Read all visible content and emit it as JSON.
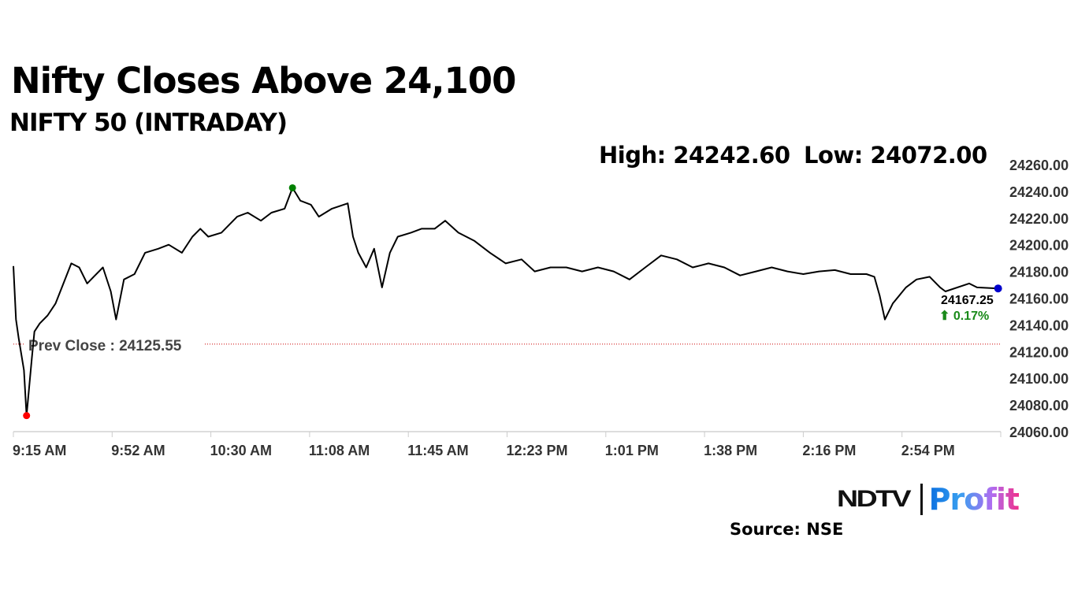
{
  "header": {
    "title": "Nifty Closes Above 24,100",
    "subtitle": "NIFTY 50 (INTRADAY)",
    "high_label": "High: 24242.60",
    "low_label": "Low: 24072.00"
  },
  "footer": {
    "brand_left": "NDTV",
    "brand_right": "Profit",
    "source": "Source: NSE"
  },
  "chart_data": {
    "type": "line",
    "title": "NIFTY 50 (INTRADAY)",
    "high": 24242.6,
    "low": 24072.0,
    "prev_close": 24125.55,
    "prev_close_label": "Prev Close : 24125.55",
    "last_value_label": "24167.25",
    "change_label": "⬆ 0.17%",
    "colors": {
      "line": "#000000",
      "high_dot": "#008000",
      "low_dot": "#ff0000",
      "last_dot": "#0000cc",
      "prev_close": "#cc0000",
      "change": "#1a8a1a"
    },
    "x_range": [
      "09:15",
      "15:30"
    ],
    "x_tick_labels": [
      "9:15 AM",
      "9:52 AM",
      "10:30 AM",
      "11:08 AM",
      "11:45 AM",
      "12:23 PM",
      "1:01 PM",
      "1:38 PM",
      "2:16 PM",
      "2:54 PM"
    ],
    "ylim": [
      24060,
      24260
    ],
    "y_tick_labels": [
      "24060.00",
      "24080.00",
      "24100.00",
      "24120.00",
      "24140.00",
      "24160.00",
      "24180.00",
      "24200.00",
      "24220.00",
      "24240.00",
      "24260.00"
    ],
    "grid": false,
    "series": [
      {
        "points": [
          [
            "09:15",
            24184
          ],
          [
            "09:16",
            24144
          ],
          [
            "09:17",
            24130
          ],
          [
            "09:19",
            24106
          ],
          [
            "09:20",
            24072
          ],
          [
            "09:22",
            24115
          ],
          [
            "09:23",
            24135
          ],
          [
            "09:25",
            24141
          ],
          [
            "09:28",
            24147
          ],
          [
            "09:31",
            24156
          ],
          [
            "09:34",
            24171
          ],
          [
            "09:37",
            24186
          ],
          [
            "09:40",
            24183
          ],
          [
            "09:43",
            24171
          ],
          [
            "09:46",
            24177
          ],
          [
            "09:49",
            24183
          ],
          [
            "09:52",
            24165
          ],
          [
            "09:54",
            24144
          ],
          [
            "09:57",
            24174
          ],
          [
            "10:01",
            24178
          ],
          [
            "10:05",
            24194
          ],
          [
            "10:10",
            24197
          ],
          [
            "10:14",
            24200
          ],
          [
            "10:19",
            24194
          ],
          [
            "10:23",
            24206
          ],
          [
            "10:26",
            24212
          ],
          [
            "10:29",
            24206
          ],
          [
            "10:34",
            24209
          ],
          [
            "10:40",
            24221
          ],
          [
            "10:44",
            24224
          ],
          [
            "10:49",
            24218
          ],
          [
            "10:53",
            24224
          ],
          [
            "10:58",
            24227
          ],
          [
            "11:01",
            24242.6
          ],
          [
            "11:04",
            24233
          ],
          [
            "11:08",
            24230
          ],
          [
            "11:11",
            24221
          ],
          [
            "11:16",
            24227
          ],
          [
            "11:22",
            24231
          ],
          [
            "11:24",
            24206
          ],
          [
            "11:26",
            24194
          ],
          [
            "11:29",
            24183
          ],
          [
            "11:32",
            24197
          ],
          [
            "11:35",
            24168
          ],
          [
            "11:38",
            24194
          ],
          [
            "11:41",
            24206
          ],
          [
            "11:46",
            24209
          ],
          [
            "11:50",
            24212
          ],
          [
            "11:55",
            24212
          ],
          [
            "11:59",
            24218
          ],
          [
            "12:04",
            24209
          ],
          [
            "12:10",
            24203
          ],
          [
            "12:16",
            24194
          ],
          [
            "12:22",
            24186
          ],
          [
            "12:28",
            24189
          ],
          [
            "12:33",
            24180
          ],
          [
            "12:39",
            24183
          ],
          [
            "12:45",
            24183
          ],
          [
            "12:51",
            24180
          ],
          [
            "12:57",
            24183
          ],
          [
            "13:03",
            24180
          ],
          [
            "13:09",
            24174
          ],
          [
            "13:15",
            24183
          ],
          [
            "13:21",
            24192
          ],
          [
            "13:27",
            24189
          ],
          [
            "13:33",
            24183
          ],
          [
            "13:39",
            24186
          ],
          [
            "13:45",
            24183
          ],
          [
            "13:51",
            24177
          ],
          [
            "13:57",
            24180
          ],
          [
            "14:03",
            24183
          ],
          [
            "14:09",
            24180
          ],
          [
            "14:15",
            24178
          ],
          [
            "14:21",
            24180
          ],
          [
            "14:27",
            24181
          ],
          [
            "14:33",
            24178
          ],
          [
            "14:39",
            24178
          ],
          [
            "14:42",
            24176
          ],
          [
            "14:44",
            24162
          ],
          [
            "14:46",
            24144
          ],
          [
            "14:49",
            24156
          ],
          [
            "14:54",
            24168
          ],
          [
            "14:58",
            24174
          ],
          [
            "15:03",
            24176
          ],
          [
            "15:07",
            24168
          ],
          [
            "15:09",
            24165
          ],
          [
            "15:18",
            24171
          ],
          [
            "15:21",
            24168
          ],
          [
            "15:29",
            24167.25
          ]
        ]
      }
    ]
  }
}
